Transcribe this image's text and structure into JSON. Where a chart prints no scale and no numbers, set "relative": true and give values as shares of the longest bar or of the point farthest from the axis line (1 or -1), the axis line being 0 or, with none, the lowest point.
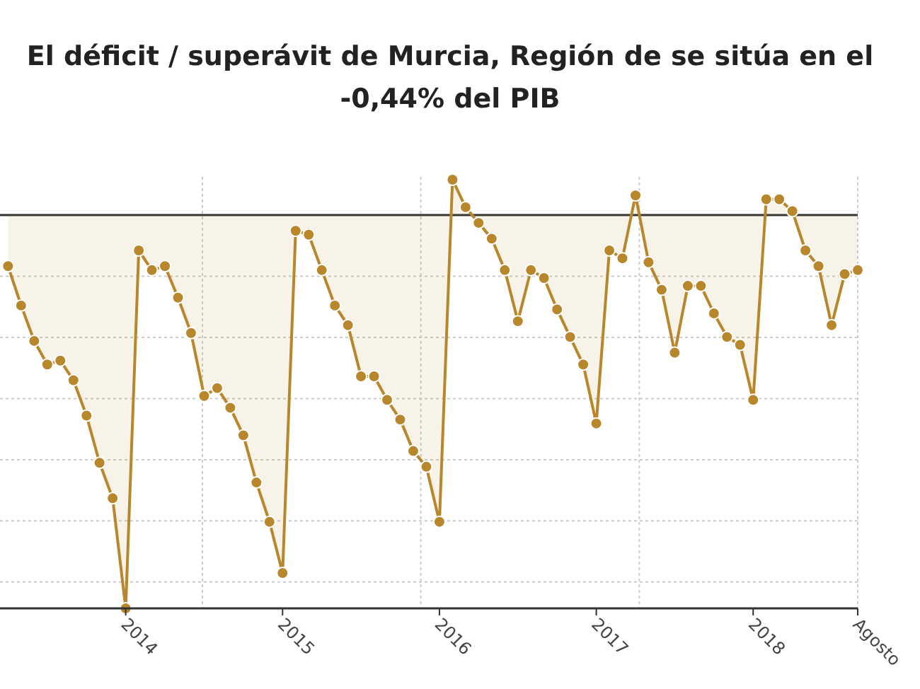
{
  "chart_data": {
    "type": "area",
    "title": "El déficit / superávit de Murcia, Región de se sitúa en el -0,44% del PIB",
    "relative": true,
    "marker": "circle",
    "grid": true,
    "categories": [
      null,
      null,
      null,
      null,
      null,
      null,
      null,
      null,
      null,
      "2014",
      null,
      null,
      null,
      null,
      null,
      null,
      null,
      null,
      null,
      null,
      null,
      "2015",
      null,
      null,
      null,
      null,
      null,
      null,
      null,
      null,
      null,
      null,
      null,
      "2016",
      null,
      null,
      null,
      null,
      null,
      null,
      null,
      null,
      null,
      null,
      null,
      "2017",
      null,
      null,
      null,
      null,
      null,
      null,
      null,
      null,
      null,
      null,
      null,
      "2018",
      null,
      null,
      null,
      null,
      null,
      null,
      null,
      "Agosto"
    ],
    "series": [
      {
        "color": "#b8862b",
        "values": [
          -0.13,
          -0.23,
          -0.32,
          -0.38,
          -0.37,
          -0.42,
          -0.51,
          -0.63,
          -0.72,
          -1,
          -0.09,
          -0.14,
          -0.13,
          -0.21,
          -0.3,
          -0.46,
          -0.44,
          -0.49,
          -0.56,
          -0.68,
          -0.78,
          -0.91,
          -0.04,
          -0.05,
          -0.14,
          -0.23,
          -0.28,
          -0.41,
          -0.41,
          -0.47,
          -0.52,
          -0.6,
          -0.64,
          -0.78,
          0.09,
          0.02,
          -0.02,
          -0.06,
          -0.14,
          -0.27,
          -0.14,
          -0.16,
          -0.24,
          -0.31,
          -0.38,
          -0.53,
          -0.09,
          -0.11,
          0.05,
          -0.12,
          -0.19,
          -0.35,
          -0.18,
          -0.18,
          -0.25,
          -0.31,
          -0.33,
          -0.47,
          0.04,
          0.04,
          0.01,
          -0.09,
          -0.13,
          -0.28,
          -0.15,
          -0.14
        ]
      }
    ]
  }
}
